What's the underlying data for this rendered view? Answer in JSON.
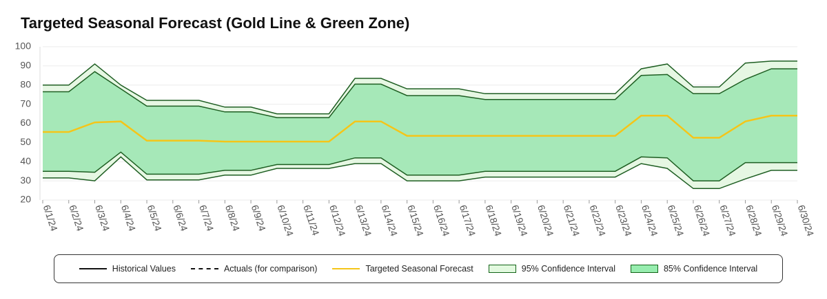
{
  "chart_data": {
    "type": "band-line",
    "title": "Targeted Seasonal Forecast (Gold Line & Green Zone)",
    "categories": [
      "6/1/24",
      "6/2/24",
      "6/3/24",
      "6/4/24",
      "6/5/24",
      "6/6/24",
      "6/7/24",
      "6/8/24",
      "6/9/24",
      "6/10/24",
      "6/11/24",
      "6/12/24",
      "6/13/24",
      "6/14/24",
      "6/15/24",
      "6/16/24",
      "6/17/24",
      "6/18/24",
      "6/19/24",
      "6/20/24",
      "6/21/24",
      "6/22/24",
      "6/23/24",
      "6/24/24",
      "6/25/24",
      "6/26/24",
      "6/27/24",
      "6/28/24",
      "6/29/24",
      "6/30/24"
    ],
    "ylim": [
      20,
      100
    ],
    "yticks": [
      20,
      30,
      40,
      50,
      60,
      70,
      80,
      90,
      100
    ],
    "grid": true,
    "series": [
      {
        "name": "Historical Values",
        "kind": "line",
        "color": "#111111"
      },
      {
        "name": "Actuals (for comparison)",
        "kind": "dashed",
        "color": "#111111"
      },
      {
        "name": "Targeted Seasonal Forecast",
        "kind": "line",
        "color": "#f5c518",
        "values": [
          55.5,
          55.5,
          60.5,
          61,
          51,
          51,
          51,
          50.5,
          50.5,
          50.5,
          50.5,
          50.5,
          61,
          61,
          53.5,
          53.5,
          53.5,
          53.5,
          53.5,
          53.5,
          53.5,
          53.5,
          53.5,
          64,
          64,
          52.5,
          52.5,
          61,
          64,
          64
        ]
      },
      {
        "name": "95% Confidence Interval",
        "kind": "band",
        "color": "#e6f7e3",
        "line_color": "#1e5e22",
        "upper": [
          80,
          80,
          91,
          80,
          72,
          72,
          72,
          68.5,
          68.5,
          65,
          65,
          65,
          83.5,
          83.5,
          78,
          78,
          78,
          75.5,
          75.5,
          75.5,
          75.5,
          75.5,
          75.5,
          88.5,
          91,
          79,
          79,
          91.5,
          92.5,
          92.5
        ],
        "lower": [
          31.5,
          31.5,
          30,
          42.5,
          30.5,
          30.5,
          30.5,
          33,
          33,
          36.5,
          36.5,
          36.5,
          39,
          39,
          30,
          30,
          30,
          32,
          32,
          32,
          32,
          32,
          32,
          39,
          36.5,
          26,
          26,
          31,
          35.5,
          35.5
        ]
      },
      {
        "name": "85% Confidence Interval",
        "kind": "band",
        "color": "#a6e8b8",
        "line_color": "#1e5e22",
        "upper": [
          76.5,
          76.5,
          87,
          78,
          69,
          69,
          69,
          66,
          66,
          63,
          63,
          63,
          80.5,
          80.5,
          74.5,
          74.5,
          74.5,
          72.5,
          72.5,
          72.5,
          72.5,
          72.5,
          72.5,
          85,
          85.5,
          75.5,
          75.5,
          83,
          88.5,
          88.5
        ],
        "lower": [
          35,
          35,
          34.5,
          45,
          33.5,
          33.5,
          33.5,
          35.5,
          35.5,
          38.5,
          38.5,
          38.5,
          42,
          42,
          33,
          33,
          33,
          35,
          35,
          35,
          35,
          35,
          35,
          42.5,
          42,
          30,
          30,
          39.5,
          39.5,
          39.5
        ]
      }
    ]
  }
}
